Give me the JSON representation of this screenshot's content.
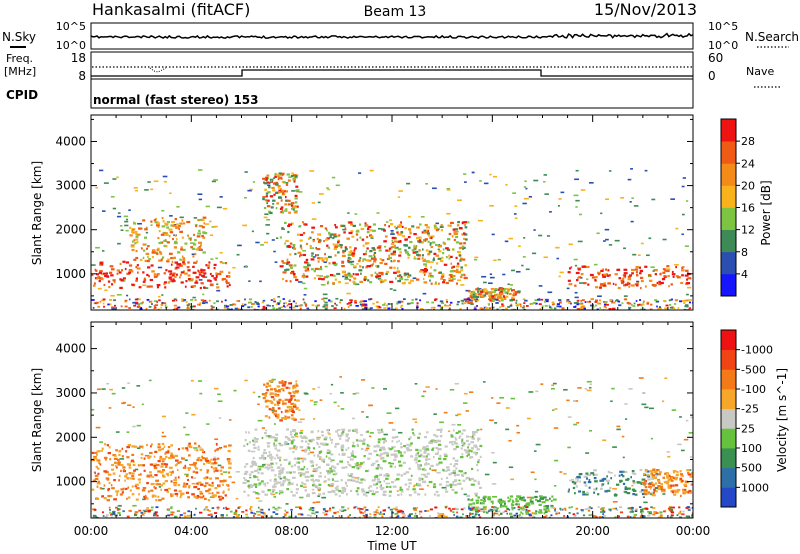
{
  "header": {
    "station": "Hankasalmi (fitACF)",
    "beam": "Beam 13",
    "date": "15/Nov/2013"
  },
  "status_panels": {
    "nsky": {
      "left_label": "N.Sky",
      "right_label": "N.Search",
      "left_ticks": [
        "10^5",
        "10^0"
      ],
      "right_ticks": [
        "10^5",
        "10^0"
      ]
    },
    "freq": {
      "left_label_1": "Freq.",
      "left_label_2": "[MHz]",
      "right_label": "Nave",
      "left_ticks": [
        "18",
        "8"
      ],
      "right_ticks": [
        "60",
        "0"
      ]
    },
    "cpid": {
      "label": "CPID",
      "value": "normal (fast stereo) 153"
    }
  },
  "chart_data": [
    {
      "type": "heatmap",
      "title": "",
      "xlabel": "",
      "ylabel": "Slant Range [km]",
      "x_range_hours": [
        0,
        24
      ],
      "ylim": [
        180,
        4600
      ],
      "y_ticks": [
        "1000",
        "2000",
        "3000",
        "4000"
      ],
      "colorbar": {
        "label": "Power [dB]",
        "tick_labels": [
          "4",
          "8",
          "12",
          "16",
          "20",
          "24",
          "28"
        ],
        "range": [
          0,
          30
        ],
        "colors": [
          "#1515ff",
          "#2a4fb0",
          "#3e8a56",
          "#7cc442",
          "#f7b21c",
          "#f48a18",
          "#ef5a14",
          "#ee1414"
        ]
      },
      "echo_regions": [
        {
          "t_start": 0.0,
          "t_end": 5.5,
          "r_min": 700,
          "r_max": 1300,
          "level": "28+"
        },
        {
          "t_start": 1.5,
          "t_end": 4.5,
          "r_min": 1300,
          "r_max": 2300,
          "level": "16-28"
        },
        {
          "t_start": 6.8,
          "t_end": 8.2,
          "r_min": 2400,
          "r_max": 3300,
          "level": "20-28"
        },
        {
          "t_start": 7.5,
          "t_end": 15.0,
          "r_min": 800,
          "r_max": 2200,
          "level": "20-28"
        },
        {
          "t_start": 15.0,
          "t_end": 17.0,
          "r_min": 400,
          "r_max": 700,
          "level": "20-28"
        },
        {
          "t_start": 19.0,
          "t_end": 23.8,
          "r_min": 700,
          "r_max": 1200,
          "level": "28+"
        }
      ]
    },
    {
      "type": "heatmap",
      "title": "",
      "xlabel": "Time UT",
      "ylabel": "Slant Range [km]",
      "x_range_hours": [
        0,
        24
      ],
      "x_ticks": [
        "00:00",
        "04:00",
        "08:00",
        "12:00",
        "16:00",
        "20:00",
        "00:00"
      ],
      "ylim": [
        180,
        4600
      ],
      "y_ticks": [
        "1000",
        "2000",
        "3000",
        "4000"
      ],
      "colorbar": {
        "label": "Velocity [m s^-1]",
        "tick_labels": [
          "1000",
          "500",
          "100",
          "25",
          "-25",
          "-100",
          "-500",
          "-1000"
        ],
        "colors": [
          "#2448c8",
          "#2e6fa8",
          "#3a9050",
          "#66c23c",
          "#c8c8c4",
          "#f6a628",
          "#f47a18",
          "#f04414",
          "#ee1212"
        ]
      },
      "echo_regions": [
        {
          "t_start": 0.0,
          "t_end": 5.5,
          "r_min": 600,
          "r_max": 1900,
          "velocity": "-100 to -500"
        },
        {
          "t_start": 6.8,
          "t_end": 8.2,
          "r_min": 2400,
          "r_max": 3300,
          "velocity": "-100 to -500"
        },
        {
          "t_start": 6.0,
          "t_end": 15.5,
          "r_min": 700,
          "r_max": 2200,
          "velocity": "-25 to 25"
        },
        {
          "t_start": 15.0,
          "t_end": 18.5,
          "r_min": 300,
          "r_max": 700,
          "velocity": "25 to 100"
        },
        {
          "t_start": 19.0,
          "t_end": 22.5,
          "r_min": 700,
          "r_max": 1300,
          "velocity": "100 to 500"
        },
        {
          "t_start": 22.0,
          "t_end": 24.0,
          "r_min": 700,
          "r_max": 1300,
          "velocity": "-100 to -500"
        }
      ]
    }
  ]
}
